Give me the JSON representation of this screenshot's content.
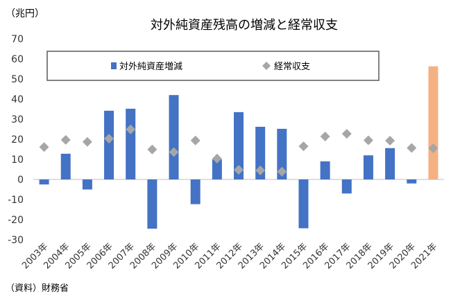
{
  "chart_data": {
    "type": "bar",
    "title": "対外純資産残高の増減と経常収支",
    "unit_label": "（兆円）",
    "source_note": "（資料）財務省",
    "categories": [
      "2003年",
      "2004年",
      "2005年",
      "2006年",
      "2007年",
      "2008年",
      "2009年",
      "2010年",
      "2011年",
      "2012年",
      "2013年",
      "2014年",
      "2015年",
      "2016年",
      "2017年",
      "2018年",
      "2019年",
      "2020年",
      "2021年"
    ],
    "ylim": [
      -30,
      70
    ],
    "yticks": [
      70,
      60,
      50,
      40,
      30,
      20,
      10,
      0,
      -10,
      -20,
      -30
    ],
    "grid": false,
    "legend_position": "top",
    "series": [
      {
        "name": "対外純資産増減",
        "kind": "bar",
        "color": "#4472C4",
        "highlight_last_color": "#F4B183",
        "values": [
          -2.5,
          12.8,
          -5.0,
          34.2,
          35.2,
          -24.5,
          42.0,
          -12.3,
          10.0,
          33.5,
          26.2,
          25.2,
          -24.3,
          9.0,
          -7.0,
          12.0,
          15.6,
          -2.0,
          56.3
        ]
      },
      {
        "name": "経常収支",
        "kind": "scatter",
        "marker": "diamond",
        "color": "#A6A6A6",
        "values": [
          16.1,
          19.7,
          18.7,
          20.3,
          24.9,
          14.9,
          13.6,
          19.4,
          10.4,
          4.8,
          4.5,
          3.9,
          16.5,
          21.4,
          22.7,
          19.5,
          19.3,
          15.7,
          15.5
        ]
      }
    ]
  }
}
